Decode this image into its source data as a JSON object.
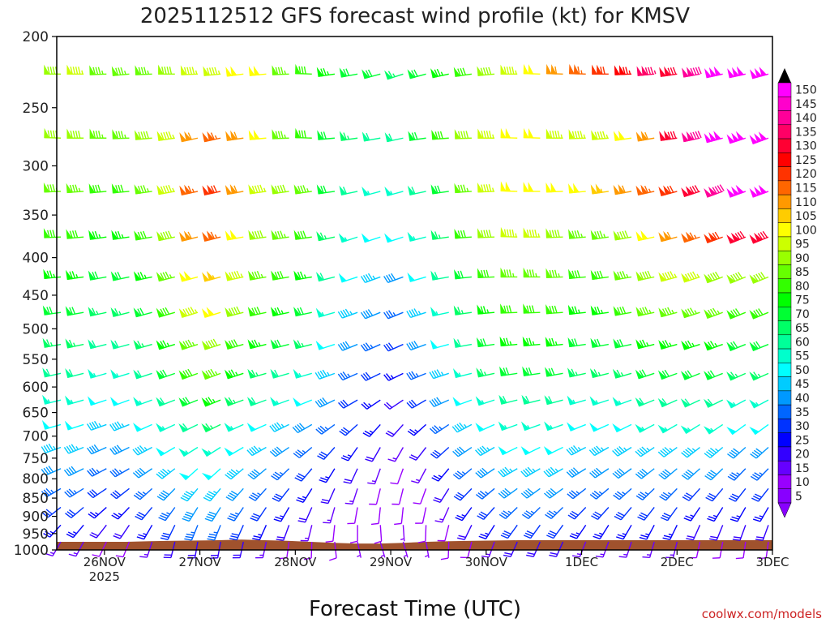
{
  "chart_data": {
    "type": "wind-barb profile (time-height)",
    "title": "2025112512 GFS forecast wind profile (kt) for KMSV",
    "xlabel": "Forecast Time (UTC)",
    "ylabel": "",
    "y_axis": {
      "scale": "log-pressure (hPa)",
      "range": [
        1000,
        200
      ],
      "ticks": [
        "200",
        "250",
        "300",
        "350",
        "400",
        "450",
        "500",
        "550",
        "600",
        "650",
        "700",
        "750",
        "800",
        "850",
        "900",
        "950",
        "1000"
      ]
    },
    "x_axis": {
      "range_days": [
        -0.5,
        7
      ],
      "ticks": [
        "26NOV",
        "27NOV",
        "28NOV",
        "29NOV",
        "30NOV",
        "1DEC",
        "2DEC",
        "3DEC"
      ],
      "year_label": "2025"
    },
    "colorbar": {
      "unit": "kt",
      "labels": [
        "150",
        "145",
        "140",
        "135",
        "130",
        "125",
        "120",
        "115",
        "110",
        "105",
        "100",
        "95",
        "90",
        "85",
        "80",
        "75",
        "70",
        "65",
        "60",
        "55",
        "50",
        "45",
        "40",
        "35",
        "30",
        "25",
        "20",
        "15",
        "10",
        "5"
      ],
      "colors": [
        "#ff00ff",
        "#ff00cc",
        "#ff0099",
        "#ff0066",
        "#ff0033",
        "#ff0000",
        "#ff3300",
        "#ff6600",
        "#ff9900",
        "#ffcc00",
        "#ffff00",
        "#ccff00",
        "#99ff00",
        "#66ff00",
        "#33ff00",
        "#00ff00",
        "#00ff33",
        "#00ff66",
        "#00ff99",
        "#00ffcc",
        "#00ffff",
        "#00ccff",
        "#0099ff",
        "#0066ff",
        "#0033ff",
        "#0000ff",
        "#3300ff",
        "#6600ff",
        "#9900ff",
        "#8800ff"
      ]
    },
    "levels_hpa": [
      225,
      275,
      325,
      375,
      425,
      475,
      525,
      575,
      625,
      675,
      725,
      775,
      825,
      875,
      925,
      975
    ],
    "time_step_hours": 6,
    "series": [
      {
        "level": 225,
        "dir_deg": [
          270,
          270,
          268,
          265,
          268,
          270,
          268,
          265,
          263,
          265,
          268,
          272,
          262,
          260,
          255,
          252,
          255,
          258,
          262,
          265,
          270,
          272,
          272,
          272,
          270,
          268,
          265,
          262,
          260,
          258,
          258,
          255
        ],
        "speed_kt": [
          90,
          95,
          85,
          85,
          85,
          90,
          95,
          95,
          100,
          100,
          85,
          80,
          75,
          70,
          70,
          65,
          70,
          75,
          80,
          90,
          95,
          100,
          110,
          115,
          120,
          125,
          135,
          130,
          140,
          150,
          150,
          150
        ]
      },
      {
        "level": 275,
        "dir_deg": [
          272,
          270,
          270,
          268,
          265,
          262,
          258,
          258,
          262,
          265,
          268,
          272,
          265,
          262,
          260,
          258,
          262,
          266,
          268,
          270,
          272,
          272,
          270,
          268,
          265,
          262,
          260,
          262,
          258,
          255,
          252,
          250
        ],
        "speed_kt": [
          90,
          90,
          85,
          85,
          90,
          95,
          110,
          115,
          110,
          100,
          85,
          80,
          70,
          65,
          60,
          60,
          70,
          80,
          90,
          95,
          100,
          100,
          95,
          95,
          95,
          100,
          110,
          130,
          140,
          150,
          150,
          150
        ]
      },
      {
        "level": 325,
        "dir_deg": [
          268,
          266,
          265,
          265,
          262,
          260,
          258,
          258,
          260,
          262,
          262,
          262,
          262,
          258,
          255,
          255,
          258,
          262,
          266,
          268,
          272,
          270,
          268,
          265,
          262,
          260,
          258,
          255,
          252,
          250,
          250,
          250
        ],
        "speed_kt": [
          85,
          85,
          80,
          80,
          85,
          95,
          115,
          120,
          110,
          95,
          90,
          85,
          70,
          60,
          55,
          55,
          60,
          70,
          85,
          95,
          100,
          100,
          100,
          100,
          105,
          110,
          115,
          120,
          130,
          140,
          150,
          150
        ]
      },
      {
        "level": 375,
        "dir_deg": [
          268,
          265,
          262,
          262,
          260,
          258,
          256,
          256,
          260,
          262,
          262,
          262,
          258,
          252,
          252,
          252,
          256,
          262,
          266,
          268,
          272,
          270,
          268,
          265,
          262,
          260,
          258,
          255,
          252,
          250,
          248,
          248
        ],
        "speed_kt": [
          80,
          80,
          75,
          75,
          80,
          90,
          110,
          115,
          100,
          90,
          85,
          80,
          65,
          55,
          50,
          50,
          55,
          65,
          80,
          90,
          95,
          95,
          90,
          85,
          85,
          90,
          100,
          110,
          115,
          120,
          130,
          130
        ]
      },
      {
        "level": 425,
        "dir_deg": [
          265,
          262,
          260,
          258,
          258,
          256,
          255,
          255,
          258,
          260,
          260,
          260,
          256,
          252,
          250,
          250,
          254,
          260,
          264,
          268,
          270,
          270,
          268,
          265,
          262,
          260,
          258,
          255,
          252,
          250,
          248,
          248
        ],
        "speed_kt": [
          75,
          75,
          70,
          70,
          75,
          85,
          100,
          105,
          95,
          85,
          80,
          75,
          60,
          50,
          45,
          40,
          50,
          60,
          70,
          80,
          85,
          85,
          85,
          80,
          80,
          85,
          90,
          95,
          95,
          90,
          90,
          90
        ]
      },
      {
        "level": 475,
        "dir_deg": [
          262,
          260,
          258,
          256,
          255,
          254,
          253,
          253,
          256,
          258,
          258,
          258,
          254,
          250,
          248,
          248,
          252,
          258,
          262,
          265,
          268,
          268,
          266,
          264,
          262,
          260,
          258,
          255,
          252,
          250,
          248,
          248
        ],
        "speed_kt": [
          70,
          70,
          65,
          65,
          70,
          80,
          95,
          100,
          90,
          80,
          75,
          70,
          55,
          45,
          40,
          35,
          45,
          55,
          65,
          75,
          80,
          80,
          80,
          75,
          75,
          80,
          85,
          85,
          85,
          85,
          80,
          80
        ]
      },
      {
        "level": 525,
        "dir_deg": [
          260,
          258,
          256,
          255,
          254,
          253,
          252,
          252,
          254,
          256,
          256,
          256,
          252,
          248,
          246,
          246,
          250,
          255,
          260,
          262,
          265,
          265,
          264,
          262,
          260,
          258,
          256,
          254,
          252,
          250,
          248,
          248
        ],
        "speed_kt": [
          65,
          65,
          60,
          60,
          65,
          75,
          85,
          90,
          80,
          75,
          70,
          65,
          50,
          40,
          35,
          30,
          40,
          50,
          60,
          70,
          75,
          75,
          75,
          70,
          70,
          70,
          75,
          75,
          75,
          75,
          70,
          70
        ]
      },
      {
        "level": 575,
        "dir_deg": [
          258,
          256,
          254,
          253,
          252,
          251,
          250,
          250,
          252,
          254,
          254,
          254,
          250,
          246,
          244,
          244,
          248,
          252,
          256,
          258,
          262,
          262,
          260,
          258,
          256,
          254,
          252,
          250,
          248,
          248,
          246,
          246
        ],
        "speed_kt": [
          60,
          60,
          55,
          55,
          60,
          70,
          80,
          85,
          75,
          65,
          60,
          55,
          45,
          35,
          30,
          25,
          35,
          45,
          55,
          65,
          70,
          70,
          70,
          65,
          65,
          65,
          70,
          70,
          70,
          70,
          65,
          65
        ]
      },
      {
        "level": 625,
        "dir_deg": [
          256,
          254,
          252,
          250,
          250,
          249,
          248,
          248,
          250,
          250,
          250,
          248,
          244,
          240,
          236,
          236,
          240,
          246,
          250,
          252,
          256,
          256,
          255,
          254,
          252,
          250,
          248,
          246,
          245,
          244,
          242,
          242
        ],
        "speed_kt": [
          55,
          55,
          50,
          50,
          55,
          60,
          70,
          75,
          65,
          60,
          55,
          50,
          40,
          30,
          25,
          20,
          30,
          40,
          50,
          55,
          60,
          60,
          60,
          55,
          55,
          55,
          60,
          60,
          60,
          60,
          55,
          55
        ]
      },
      {
        "level": 675,
        "dir_deg": [
          254,
          252,
          250,
          248,
          246,
          245,
          244,
          244,
          246,
          246,
          244,
          240,
          234,
          228,
          222,
          222,
          228,
          236,
          242,
          246,
          250,
          250,
          250,
          248,
          246,
          244,
          242,
          240,
          238,
          236,
          234,
          234
        ],
        "speed_kt": [
          50,
          50,
          45,
          45,
          50,
          55,
          60,
          65,
          55,
          50,
          45,
          40,
          35,
          30,
          25,
          20,
          25,
          35,
          45,
          50,
          55,
          55,
          55,
          50,
          50,
          50,
          55,
          55,
          55,
          55,
          50,
          50
        ]
      },
      {
        "level": 725,
        "dir_deg": [
          250,
          248,
          246,
          244,
          242,
          240,
          238,
          238,
          240,
          240,
          236,
          230,
          222,
          215,
          210,
          210,
          218,
          228,
          236,
          240,
          244,
          244,
          244,
          242,
          240,
          238,
          236,
          234,
          232,
          230,
          228,
          228
        ],
        "speed_kt": [
          45,
          45,
          40,
          40,
          45,
          50,
          55,
          55,
          50,
          45,
          40,
          35,
          30,
          25,
          20,
          15,
          20,
          30,
          40,
          45,
          50,
          50,
          50,
          45,
          45,
          45,
          45,
          45,
          45,
          45,
          40,
          40
        ]
      },
      {
        "level": 775,
        "dir_deg": [
          246,
          244,
          242,
          240,
          236,
          232,
          228,
          228,
          230,
          230,
          226,
          220,
          212,
          205,
          200,
          200,
          208,
          220,
          230,
          236,
          240,
          240,
          240,
          238,
          236,
          234,
          232,
          230,
          228,
          226,
          224,
          224
        ],
        "speed_kt": [
          40,
          40,
          35,
          35,
          40,
          45,
          50,
          50,
          45,
          40,
          35,
          30,
          25,
          20,
          15,
          12,
          15,
          25,
          35,
          40,
          45,
          45,
          45,
          40,
          40,
          40,
          40,
          40,
          40,
          40,
          35,
          35
        ]
      },
      {
        "level": 825,
        "dir_deg": [
          240,
          238,
          236,
          232,
          228,
          224,
          220,
          220,
          222,
          222,
          218,
          212,
          204,
          198,
          194,
          194,
          200,
          212,
          224,
          230,
          234,
          234,
          234,
          232,
          230,
          228,
          226,
          224,
          222,
          220,
          218,
          218
        ],
        "speed_kt": [
          35,
          35,
          30,
          30,
          35,
          40,
          45,
          45,
          40,
          35,
          30,
          25,
          20,
          15,
          12,
          10,
          12,
          20,
          30,
          35,
          40,
          40,
          40,
          35,
          35,
          35,
          35,
          35,
          30,
          30,
          30,
          30
        ]
      },
      {
        "level": 875,
        "dir_deg": [
          232,
          230,
          228,
          224,
          220,
          216,
          212,
          212,
          214,
          214,
          210,
          204,
          196,
          190,
          186,
          186,
          192,
          204,
          216,
          222,
          226,
          226,
          226,
          224,
          222,
          220,
          218,
          216,
          214,
          212,
          210,
          210
        ],
        "speed_kt": [
          30,
          30,
          25,
          25,
          30,
          35,
          40,
          40,
          35,
          30,
          25,
          20,
          15,
          12,
          10,
          8,
          10,
          15,
          25,
          30,
          35,
          35,
          35,
          30,
          30,
          30,
          30,
          30,
          25,
          25,
          25,
          25
        ]
      },
      {
        "level": 925,
        "dir_deg": [
          222,
          220,
          218,
          214,
          210,
          206,
          202,
          202,
          204,
          204,
          200,
          194,
          186,
          180,
          176,
          176,
          182,
          194,
          206,
          212,
          216,
          216,
          216,
          214,
          212,
          210,
          208,
          206,
          204,
          202,
          200,
          200
        ],
        "speed_kt": [
          25,
          25,
          20,
          20,
          25,
          30,
          35,
          35,
          30,
          25,
          20,
          15,
          12,
          10,
          8,
          6,
          8,
          12,
          20,
          25,
          30,
          30,
          30,
          25,
          25,
          25,
          25,
          25,
          20,
          20,
          20,
          20
        ]
      },
      {
        "level": 975,
        "dir_deg": [
          210,
          208,
          206,
          202,
          198,
          194,
          190,
          190,
          192,
          192,
          188,
          182,
          174,
          168,
          164,
          164,
          170,
          182,
          194,
          200,
          204,
          204,
          204,
          202,
          200,
          198,
          196,
          194,
          192,
          190,
          188,
          188
        ],
        "speed_kt": [
          15,
          15,
          12,
          12,
          15,
          18,
          20,
          20,
          18,
          15,
          12,
          10,
          8,
          6,
          5,
          5,
          6,
          8,
          12,
          15,
          18,
          18,
          18,
          15,
          15,
          15,
          15,
          15,
          12,
          12,
          12,
          12
        ]
      }
    ],
    "terrain_hpa": [
      975,
      975,
      975,
      975,
      973,
      972,
      971,
      970,
      968,
      970,
      972,
      975,
      978,
      980,
      980,
      978,
      975,
      973,
      972,
      971,
      970,
      970,
      970,
      970,
      970,
      970,
      970,
      970,
      970,
      970,
      970,
      970
    ]
  },
  "footer": {
    "credit": "coolwx.com/models"
  }
}
